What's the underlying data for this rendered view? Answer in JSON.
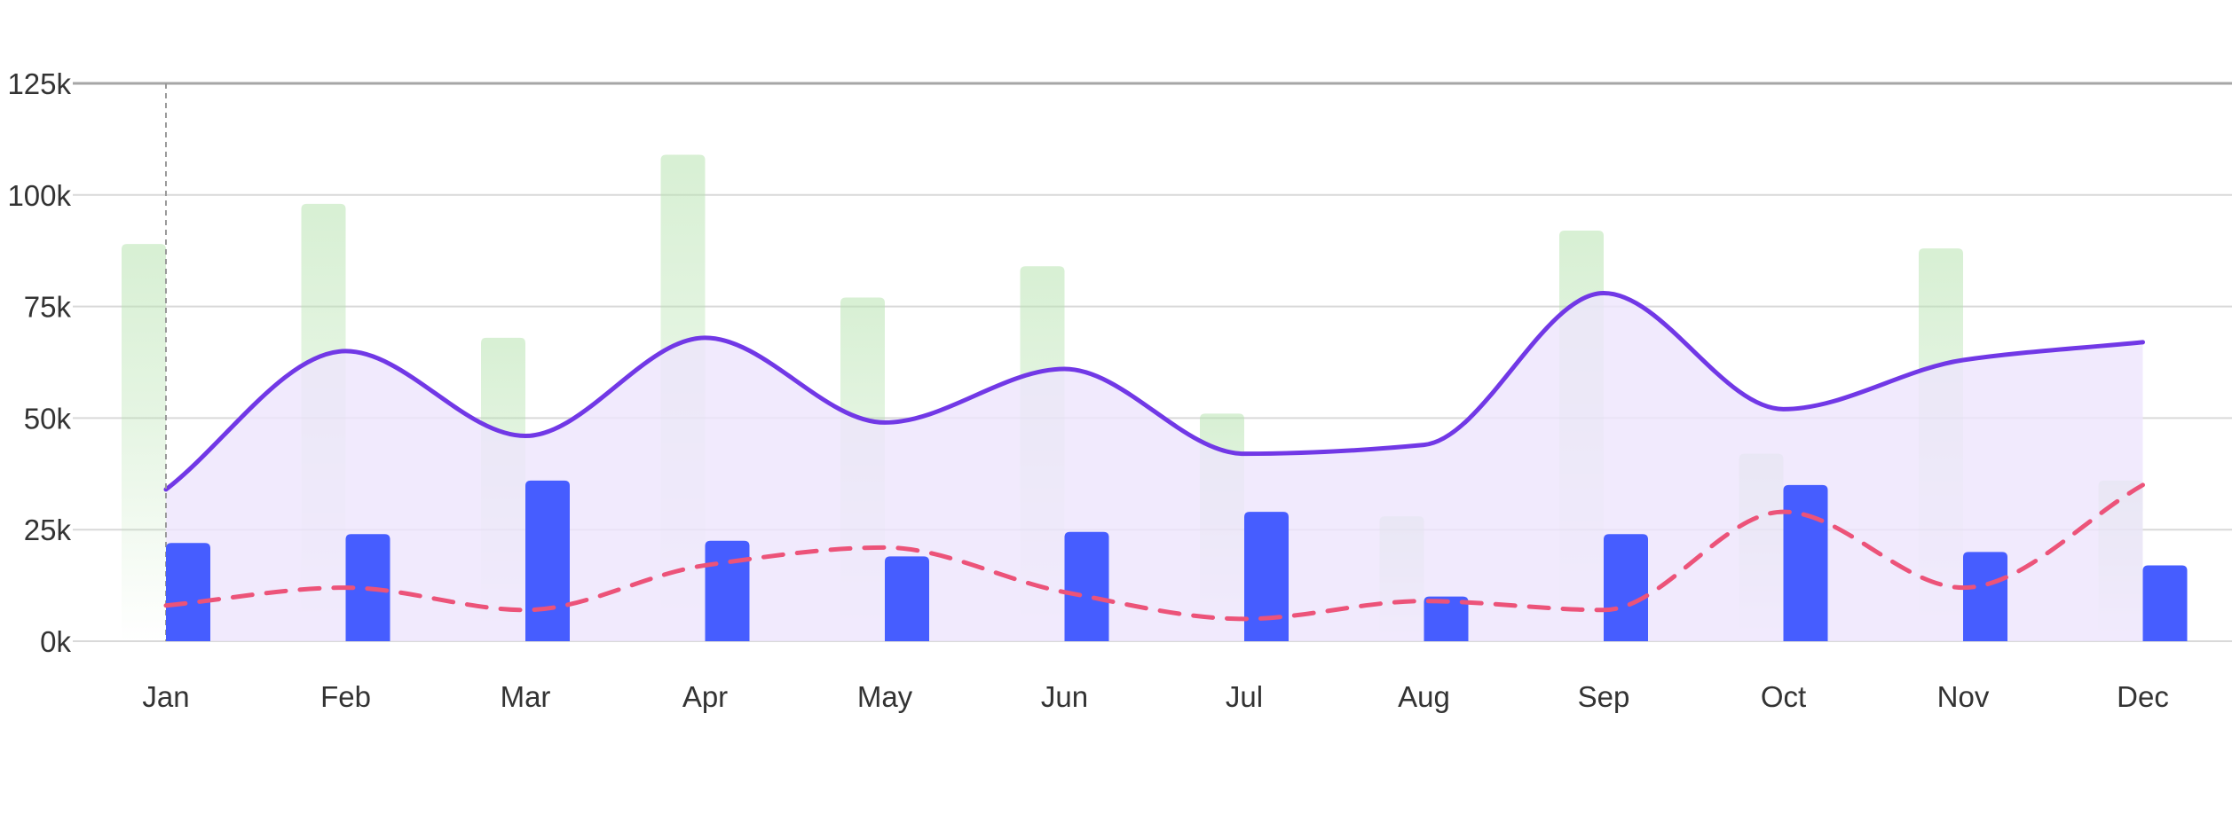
{
  "chart_data": {
    "type": "bar",
    "categories": [
      "Jan",
      "Feb",
      "Mar",
      "Apr",
      "May",
      "Jun",
      "Jul",
      "Aug",
      "Sep",
      "Oct",
      "Nov",
      "Dec"
    ],
    "ylim": [
      0,
      125000
    ],
    "yticks": [
      0,
      25000,
      50000,
      75000,
      100000,
      125000
    ],
    "ytick_labels": [
      "0k",
      "25k",
      "50k",
      "75k",
      "100k",
      "125k"
    ],
    "grid": true,
    "legend": "none",
    "title": "",
    "xlabel": "",
    "ylabel": "",
    "crosshair_category": "Jan",
    "series": [
      {
        "type": "bar",
        "style": "gradient-faded",
        "color": "#b7e3b0",
        "values": [
          89000,
          98000,
          68000,
          109000,
          77000,
          84000,
          51000,
          28000,
          92000,
          42000,
          88000,
          36000
        ]
      },
      {
        "type": "area",
        "style": "smooth-solid",
        "color": "#7138e6",
        "fill": "#ede5fd",
        "values": [
          34000,
          65000,
          46000,
          68000,
          49000,
          61000,
          42000,
          44000,
          78000,
          52000,
          63000,
          67000
        ]
      },
      {
        "type": "bar",
        "style": "solid",
        "color": "#465dff",
        "values": [
          22000,
          24000,
          36000,
          22500,
          19000,
          24500,
          29000,
          10000,
          24000,
          35000,
          20000,
          17000
        ]
      },
      {
        "type": "line",
        "style": "smooth-dashed",
        "color": "#ec5379",
        "values": [
          8000,
          12000,
          7000,
          17000,
          21000,
          11000,
          5000,
          9000,
          7000,
          29000,
          12000,
          35000
        ]
      }
    ]
  }
}
